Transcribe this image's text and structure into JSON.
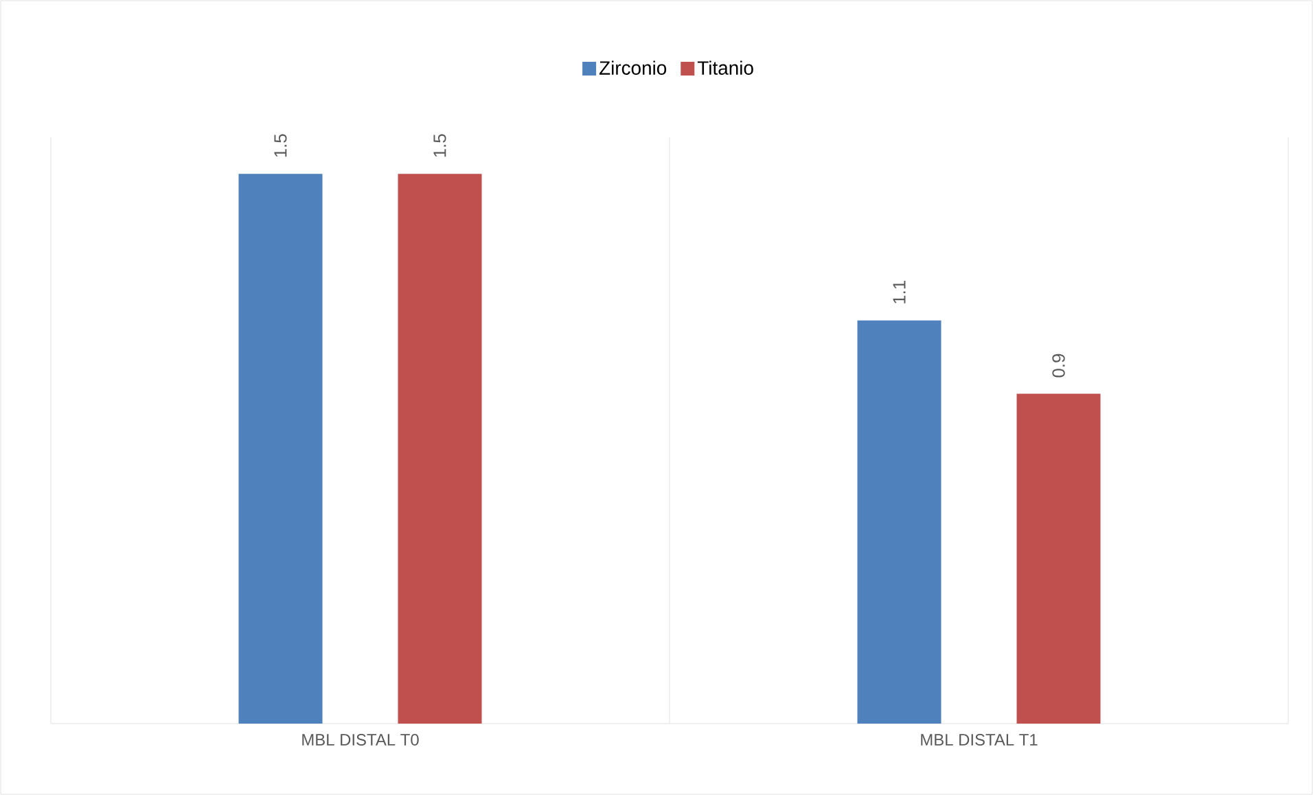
{
  "chart_data": {
    "type": "bar",
    "categories": [
      "MBL DISTAL T0",
      "MBL DISTAL T1"
    ],
    "series": [
      {
        "name": "Zirconio",
        "color": "#4f81bd",
        "values": [
          1.5,
          1.1
        ]
      },
      {
        "name": "Titanio",
        "color": "#c0504d",
        "values": [
          1.5,
          0.9
        ]
      }
    ],
    "ylim": [
      0,
      1.6
    ],
    "data_labels": true,
    "legend": "top",
    "grid": "x"
  }
}
